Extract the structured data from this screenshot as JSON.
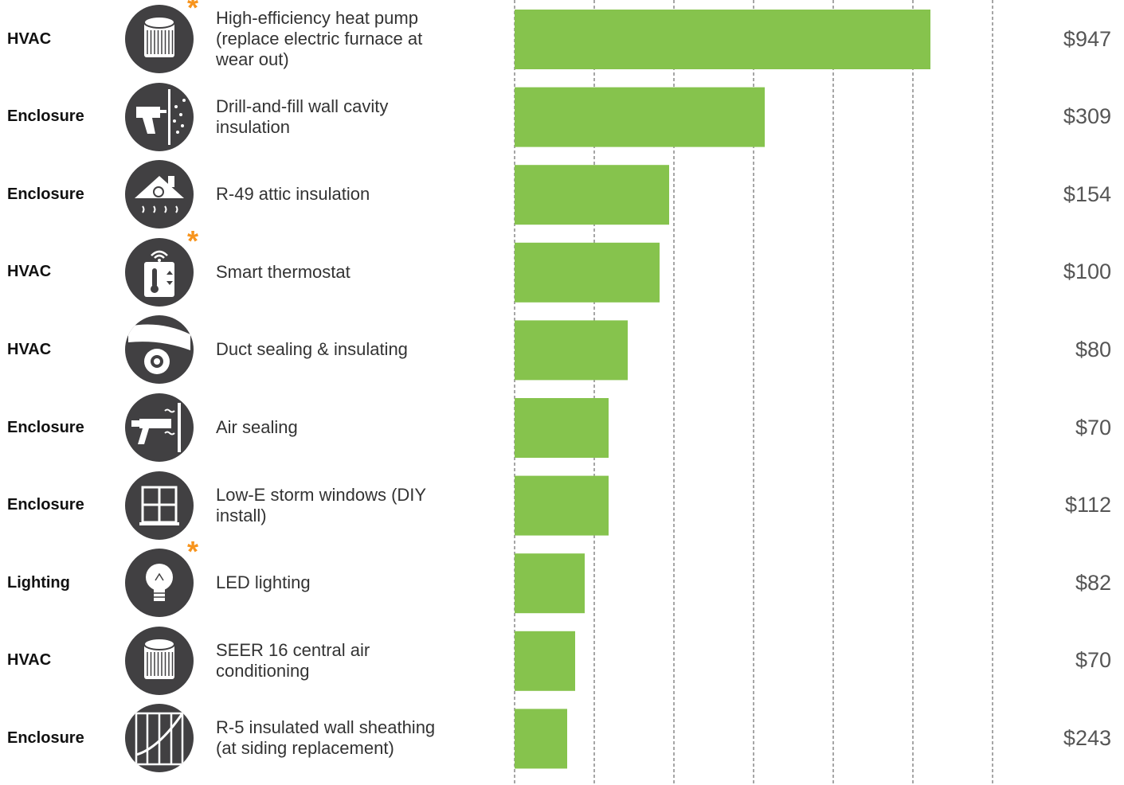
{
  "colors": {
    "bar": "#86c34d",
    "icon_bg": "#414042",
    "star": "#f7941d"
  },
  "chart_data": {
    "type": "bar",
    "orientation": "horizontal",
    "grid": true,
    "xlim": [
      0,
      300
    ],
    "xticks": [
      0,
      50,
      100,
      150,
      200,
      250,
      300
    ],
    "categories": [
      {
        "group": "HVAC",
        "label": "High-efficiency heat pump (replace electric furnace at wear out)",
        "bar_value": 261,
        "value_label": "$947",
        "icon": "ac-unit-icon",
        "starred": true
      },
      {
        "group": "Enclosure",
        "label": "Drill-and-fill wall cavity insulation",
        "bar_value": 157,
        "value_label": "$309",
        "icon": "drill-insulation-icon",
        "starred": false
      },
      {
        "group": "Enclosure",
        "label": "R-49 attic insulation",
        "bar_value": 97,
        "value_label": "$154",
        "icon": "attic-insulation-icon",
        "starred": false
      },
      {
        "group": "HVAC",
        "label": "Smart thermostat",
        "bar_value": 91,
        "value_label": "$100",
        "icon": "thermostat-icon",
        "starred": true
      },
      {
        "group": "HVAC",
        "label": "Duct sealing & insulating",
        "bar_value": 71,
        "value_label": "$80",
        "icon": "duct-tape-icon",
        "starred": false
      },
      {
        "group": "Enclosure",
        "label": "Air sealing",
        "bar_value": 59,
        "value_label": "$70",
        "icon": "caulk-gun-icon",
        "starred": false
      },
      {
        "group": "Enclosure",
        "label": "Low-E storm windows (DIY install)",
        "bar_value": 59,
        "value_label": "$112",
        "icon": "window-icon",
        "starred": false
      },
      {
        "group": "Lighting",
        "label": "LED lighting",
        "bar_value": 44,
        "value_label": "$82",
        "icon": "led-bulb-icon",
        "starred": true
      },
      {
        "group": "HVAC",
        "label": "SEER 16 central air conditioning",
        "bar_value": 38,
        "value_label": "$70",
        "icon": "ac-unit-icon",
        "starred": false
      },
      {
        "group": "Enclosure",
        "label": "R-5 insulated wall sheathing (at siding replacement)",
        "bar_value": 33,
        "value_label": "$243",
        "icon": "wall-sheathing-icon",
        "starred": false
      }
    ]
  }
}
